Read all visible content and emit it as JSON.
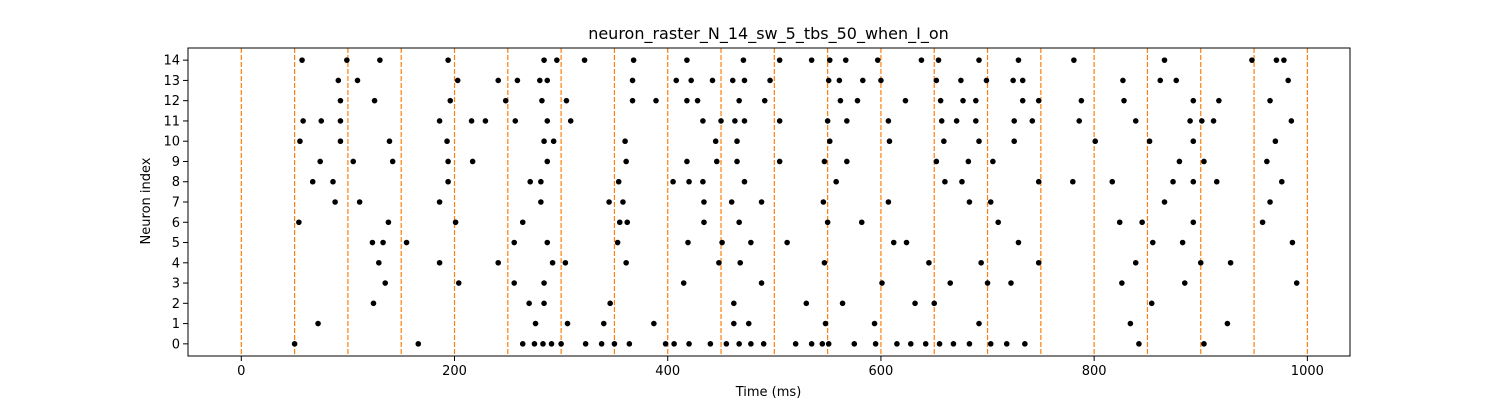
{
  "chart_data": {
    "type": "scatter",
    "title": "neuron_raster_N_14_sw_5_tbs_50_when_I_on",
    "xlabel": "Time (ms)",
    "ylabel": "Neuron index",
    "xlim": [
      -50,
      1040
    ],
    "ylim": [
      -0.6,
      14.6
    ],
    "xticks": [
      0,
      200,
      400,
      600,
      800,
      1000
    ],
    "yticks": [
      0,
      1,
      2,
      3,
      4,
      5,
      6,
      7,
      8,
      9,
      10,
      11,
      12,
      13,
      14
    ],
    "grid": false,
    "marker_color": "#000000",
    "vline_color": "#ff7f0e",
    "vline_style": "dashed",
    "vlines_x": [
      0,
      50,
      100,
      150,
      200,
      250,
      300,
      350,
      400,
      450,
      500,
      550,
      600,
      650,
      700,
      750,
      800,
      850,
      900,
      950,
      1000
    ],
    "series": [
      {
        "values": [
          [
            50,
            0
          ],
          [
            166,
            0
          ],
          [
            264,
            0
          ],
          [
            275,
            0
          ],
          [
            283,
            0
          ],
          [
            291,
            0
          ],
          [
            300,
            0
          ],
          [
            323,
            0
          ],
          [
            338,
            0
          ],
          [
            350,
            0
          ],
          [
            364,
            0
          ],
          [
            398,
            0
          ],
          [
            406,
            0
          ],
          [
            420,
            0
          ],
          [
            440,
            0
          ],
          [
            455,
            0
          ],
          [
            467,
            0
          ],
          [
            478,
            0
          ],
          [
            490,
            0
          ],
          [
            520,
            0
          ],
          [
            535,
            0
          ],
          [
            545,
            0
          ],
          [
            551,
            0
          ],
          [
            575,
            0
          ],
          [
            595,
            0
          ],
          [
            615,
            0
          ],
          [
            628,
            0
          ],
          [
            642,
            0
          ],
          [
            655,
            0
          ],
          [
            668,
            0
          ],
          [
            683,
            0
          ],
          [
            703,
            0
          ],
          [
            718,
            0
          ],
          [
            735,
            0
          ],
          [
            842,
            0
          ],
          [
            903,
            0
          ]
        ]
      },
      {
        "values": [
          [
            72,
            1
          ],
          [
            276,
            1
          ],
          [
            306,
            1
          ],
          [
            340,
            1
          ],
          [
            387,
            1
          ],
          [
            462,
            1
          ],
          [
            476,
            1
          ],
          [
            548,
            1
          ],
          [
            594,
            1
          ],
          [
            692,
            1
          ],
          [
            834,
            1
          ],
          [
            925,
            1
          ]
        ]
      },
      {
        "values": [
          [
            124,
            2
          ],
          [
            270,
            2
          ],
          [
            284,
            2
          ],
          [
            346,
            2
          ],
          [
            462,
            2
          ],
          [
            530,
            2
          ],
          [
            564,
            2
          ],
          [
            632,
            2
          ],
          [
            650,
            2
          ],
          [
            854,
            2
          ]
        ]
      },
      {
        "values": [
          [
            135,
            3
          ],
          [
            204,
            3
          ],
          [
            256,
            3
          ],
          [
            284,
            3
          ],
          [
            415,
            3
          ],
          [
            488,
            3
          ],
          [
            601,
            3
          ],
          [
            665,
            3
          ],
          [
            700,
            3
          ],
          [
            722,
            3
          ],
          [
            826,
            3
          ],
          [
            885,
            3
          ],
          [
            990,
            3
          ]
        ]
      },
      {
        "values": [
          [
            129,
            4
          ],
          [
            186,
            4
          ],
          [
            241,
            4
          ],
          [
            292,
            4
          ],
          [
            304,
            4
          ],
          [
            361,
            4
          ],
          [
            448,
            4
          ],
          [
            468,
            4
          ],
          [
            547,
            4
          ],
          [
            645,
            4
          ],
          [
            694,
            4
          ],
          [
            748,
            4
          ],
          [
            839,
            4
          ],
          [
            900,
            4
          ],
          [
            928,
            4
          ]
        ]
      },
      {
        "values": [
          [
            123,
            5
          ],
          [
            133,
            5
          ],
          [
            155,
            5
          ],
          [
            256,
            5
          ],
          [
            287,
            5
          ],
          [
            353,
            5
          ],
          [
            419,
            5
          ],
          [
            451,
            5
          ],
          [
            478,
            5
          ],
          [
            512,
            5
          ],
          [
            612,
            5
          ],
          [
            624,
            5
          ],
          [
            729,
            5
          ],
          [
            855,
            5
          ],
          [
            883,
            5
          ],
          [
            986,
            5
          ]
        ]
      },
      {
        "values": [
          [
            54,
            6
          ],
          [
            138,
            6
          ],
          [
            201,
            6
          ],
          [
            264,
            6
          ],
          [
            355,
            6
          ],
          [
            362,
            6
          ],
          [
            434,
            6
          ],
          [
            467,
            6
          ],
          [
            550,
            6
          ],
          [
            582,
            6
          ],
          [
            710,
            6
          ],
          [
            824,
            6
          ],
          [
            845,
            6
          ],
          [
            893,
            6
          ],
          [
            958,
            6
          ]
        ]
      },
      {
        "values": [
          [
            88,
            7
          ],
          [
            111,
            7
          ],
          [
            186,
            7
          ],
          [
            281,
            7
          ],
          [
            345,
            7
          ],
          [
            358,
            7
          ],
          [
            434,
            7
          ],
          [
            460,
            7
          ],
          [
            488,
            7
          ],
          [
            546,
            7
          ],
          [
            607,
            7
          ],
          [
            683,
            7
          ],
          [
            703,
            7
          ],
          [
            866,
            7
          ],
          [
            965,
            7
          ]
        ]
      },
      {
        "values": [
          [
            67,
            8
          ],
          [
            86,
            8
          ],
          [
            194,
            8
          ],
          [
            271,
            8
          ],
          [
            281,
            8
          ],
          [
            354,
            8
          ],
          [
            405,
            8
          ],
          [
            420,
            8
          ],
          [
            433,
            8
          ],
          [
            472,
            8
          ],
          [
            558,
            8
          ],
          [
            660,
            8
          ],
          [
            676,
            8
          ],
          [
            748,
            8
          ],
          [
            780,
            8
          ],
          [
            817,
            8
          ],
          [
            874,
            8
          ],
          [
            893,
            8
          ],
          [
            915,
            8
          ],
          [
            976,
            8
          ]
        ]
      },
      {
        "values": [
          [
            74,
            9
          ],
          [
            105,
            9
          ],
          [
            142,
            9
          ],
          [
            194,
            9
          ],
          [
            217,
            9
          ],
          [
            287,
            9
          ],
          [
            361,
            9
          ],
          [
            418,
            9
          ],
          [
            446,
            9
          ],
          [
            465,
            9
          ],
          [
            505,
            9
          ],
          [
            547,
            9
          ],
          [
            568,
            9
          ],
          [
            652,
            9
          ],
          [
            682,
            9
          ],
          [
            705,
            9
          ],
          [
            880,
            9
          ],
          [
            903,
            9
          ],
          [
            962,
            9
          ]
        ]
      },
      {
        "values": [
          [
            55,
            10
          ],
          [
            93,
            10
          ],
          [
            139,
            10
          ],
          [
            193,
            10
          ],
          [
            284,
            10
          ],
          [
            293,
            10
          ],
          [
            360,
            10
          ],
          [
            445,
            10
          ],
          [
            465,
            10
          ],
          [
            552,
            10
          ],
          [
            608,
            10
          ],
          [
            659,
            10
          ],
          [
            692,
            10
          ],
          [
            725,
            10
          ],
          [
            801,
            10
          ],
          [
            852,
            10
          ],
          [
            893,
            10
          ],
          [
            970,
            10
          ]
        ]
      },
      {
        "values": [
          [
            58,
            11
          ],
          [
            75,
            11
          ],
          [
            93,
            11
          ],
          [
            186,
            11
          ],
          [
            216,
            11
          ],
          [
            229,
            11
          ],
          [
            257,
            11
          ],
          [
            287,
            11
          ],
          [
            309,
            11
          ],
          [
            433,
            11
          ],
          [
            450,
            11
          ],
          [
            463,
            11
          ],
          [
            472,
            11
          ],
          [
            505,
            11
          ],
          [
            550,
            11
          ],
          [
            568,
            11
          ],
          [
            607,
            11
          ],
          [
            657,
            11
          ],
          [
            671,
            11
          ],
          [
            689,
            11
          ],
          [
            725,
            11
          ],
          [
            742,
            11
          ],
          [
            786,
            11
          ],
          [
            839,
            11
          ],
          [
            890,
            11
          ],
          [
            901,
            11
          ],
          [
            912,
            11
          ],
          [
            985,
            11
          ]
        ]
      },
      {
        "values": [
          [
            93,
            12
          ],
          [
            125,
            12
          ],
          [
            196,
            12
          ],
          [
            248,
            12
          ],
          [
            282,
            12
          ],
          [
            305,
            12
          ],
          [
            367,
            12
          ],
          [
            389,
            12
          ],
          [
            418,
            12
          ],
          [
            428,
            12
          ],
          [
            467,
            12
          ],
          [
            491,
            12
          ],
          [
            562,
            12
          ],
          [
            578,
            12
          ],
          [
            623,
            12
          ],
          [
            656,
            12
          ],
          [
            677,
            12
          ],
          [
            689,
            12
          ],
          [
            733,
            12
          ],
          [
            748,
            12
          ],
          [
            788,
            12
          ],
          [
            828,
            12
          ],
          [
            893,
            12
          ],
          [
            917,
            12
          ],
          [
            965,
            12
          ]
        ]
      },
      {
        "values": [
          [
            91,
            13
          ],
          [
            109,
            13
          ],
          [
            203,
            13
          ],
          [
            241,
            13
          ],
          [
            259,
            13
          ],
          [
            280,
            13
          ],
          [
            287,
            13
          ],
          [
            367,
            13
          ],
          [
            408,
            13
          ],
          [
            422,
            13
          ],
          [
            442,
            13
          ],
          [
            461,
            13
          ],
          [
            472,
            13
          ],
          [
            496,
            13
          ],
          [
            551,
            13
          ],
          [
            561,
            13
          ],
          [
            583,
            13
          ],
          [
            600,
            13
          ],
          [
            652,
            13
          ],
          [
            675,
            13
          ],
          [
            699,
            13
          ],
          [
            724,
            13
          ],
          [
            733,
            13
          ],
          [
            827,
            13
          ],
          [
            862,
            13
          ],
          [
            877,
            13
          ],
          [
            982,
            13
          ]
        ]
      },
      {
        "values": [
          [
            57,
            14
          ],
          [
            99,
            14
          ],
          [
            130,
            14
          ],
          [
            194,
            14
          ],
          [
            284,
            14
          ],
          [
            296,
            14
          ],
          [
            322,
            14
          ],
          [
            368,
            14
          ],
          [
            418,
            14
          ],
          [
            471,
            14
          ],
          [
            505,
            14
          ],
          [
            535,
            14
          ],
          [
            552,
            14
          ],
          [
            567,
            14
          ],
          [
            597,
            14
          ],
          [
            638,
            14
          ],
          [
            654,
            14
          ],
          [
            692,
            14
          ],
          [
            729,
            14
          ],
          [
            781,
            14
          ],
          [
            866,
            14
          ],
          [
            948,
            14
          ],
          [
            971,
            14
          ],
          [
            978,
            14
          ]
        ]
      }
    ]
  }
}
